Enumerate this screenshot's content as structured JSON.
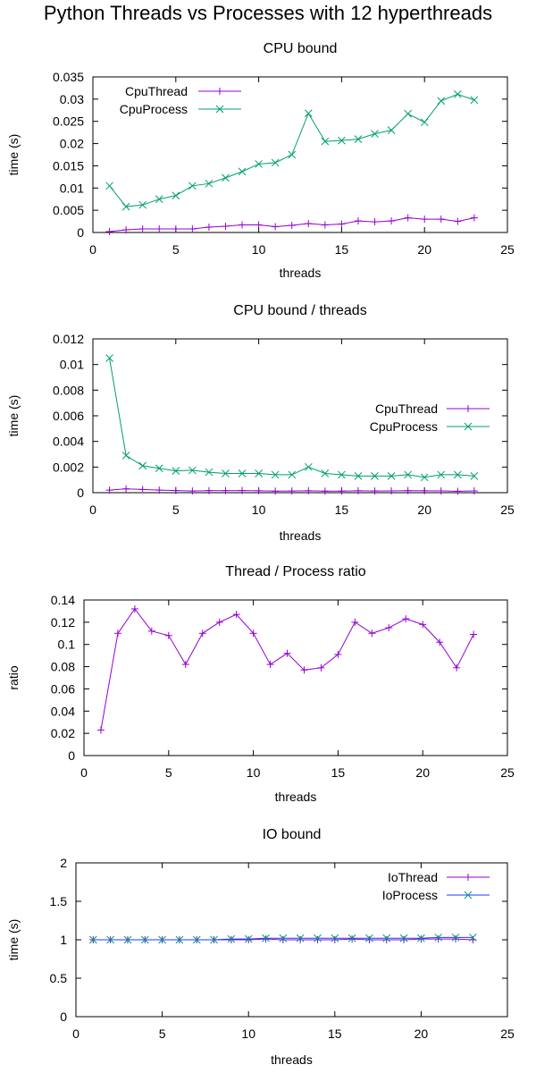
{
  "figure_title": "Python Threads vs Processes with 12 hyperthreads",
  "colors": {
    "thread": "#9400d3",
    "process": "#009e73",
    "io_process_line": "#1f3bff"
  },
  "chart_data": [
    {
      "id": "cpu-bound",
      "type": "line",
      "title": "CPU bound",
      "xlabel": "threads",
      "ylabel": "time (s)",
      "xlim": [
        0,
        25
      ],
      "ylim": [
        0,
        0.035
      ],
      "xticks": [
        0,
        5,
        10,
        15,
        20,
        25
      ],
      "yticks": [
        0,
        0.005,
        0.01,
        0.015,
        0.02,
        0.025,
        0.03,
        0.035
      ],
      "ytick_labels": [
        "0",
        "0.005",
        "0.01",
        "0.015",
        "0.02",
        "0.025",
        "0.03",
        "0.035"
      ],
      "legend": "top-left",
      "x": [
        1,
        2,
        3,
        4,
        5,
        6,
        7,
        8,
        9,
        10,
        11,
        12,
        13,
        14,
        15,
        16,
        17,
        18,
        19,
        20,
        21,
        22,
        23
      ],
      "series": [
        {
          "name": "CpuThread",
          "marker": "plus",
          "color": "#9400d3",
          "values": [
            0.0002,
            0.0006,
            0.0008,
            0.0008,
            0.0008,
            0.0008,
            0.0012,
            0.0014,
            0.0017,
            0.0017,
            0.0013,
            0.0016,
            0.002,
            0.0017,
            0.0019,
            0.0026,
            0.0024,
            0.0026,
            0.0033,
            0.003,
            0.003,
            0.0025,
            0.0033
          ]
        },
        {
          "name": "CpuProcess",
          "marker": "cross",
          "color": "#009e73",
          "values": [
            0.0105,
            0.0058,
            0.0062,
            0.0075,
            0.0083,
            0.0105,
            0.011,
            0.0123,
            0.0137,
            0.0154,
            0.0157,
            0.0175,
            0.0268,
            0.0205,
            0.0207,
            0.021,
            0.0222,
            0.023,
            0.0267,
            0.0248,
            0.0296,
            0.0311,
            0.0298
          ]
        }
      ]
    },
    {
      "id": "cpu-bound-per-thread",
      "type": "line",
      "title": "CPU bound / threads",
      "xlabel": "threads",
      "ylabel": "time (s)",
      "xlim": [
        0,
        25
      ],
      "ylim": [
        0,
        0.012
      ],
      "xticks": [
        0,
        5,
        10,
        15,
        20,
        25
      ],
      "yticks": [
        0,
        0.002,
        0.004,
        0.006,
        0.008,
        0.01,
        0.012
      ],
      "ytick_labels": [
        "0",
        "0.002",
        "0.004",
        "0.006",
        "0.008",
        "0.01",
        "0.012"
      ],
      "legend": "right",
      "x": [
        1,
        2,
        3,
        4,
        5,
        6,
        7,
        8,
        9,
        10,
        11,
        12,
        13,
        14,
        15,
        16,
        17,
        18,
        19,
        20,
        21,
        22,
        23
      ],
      "series": [
        {
          "name": "CpuThread",
          "marker": "plus",
          "color": "#9400d3",
          "values": [
            0.0002,
            0.0003,
            0.00025,
            0.0002,
            0.00017,
            0.00013,
            0.00016,
            0.00016,
            0.00017,
            0.00015,
            0.00012,
            0.00013,
            0.00015,
            0.00012,
            0.00012,
            0.00015,
            0.00013,
            0.00014,
            0.00016,
            0.00015,
            0.00014,
            0.00011,
            0.00014
          ]
        },
        {
          "name": "CpuProcess",
          "marker": "cross",
          "color": "#009e73",
          "values": [
            0.0105,
            0.0029,
            0.0021,
            0.0019,
            0.0017,
            0.00175,
            0.0016,
            0.0015,
            0.0015,
            0.0015,
            0.0014,
            0.0014,
            0.002,
            0.0015,
            0.0014,
            0.0013,
            0.0013,
            0.0013,
            0.0014,
            0.0012,
            0.0014,
            0.0014,
            0.0013
          ]
        }
      ]
    },
    {
      "id": "thread-process-ratio",
      "type": "line",
      "title": "Thread / Process ratio",
      "xlabel": "threads",
      "ylabel": "ratio",
      "xlim": [
        0,
        25
      ],
      "ylim": [
        0,
        0.14
      ],
      "xticks": [
        0,
        5,
        10,
        15,
        20,
        25
      ],
      "yticks": [
        0,
        0.02,
        0.04,
        0.06,
        0.08,
        0.1,
        0.12,
        0.14
      ],
      "ytick_labels": [
        "0",
        "0.02",
        "0.04",
        "0.06",
        "0.08",
        "0.1",
        "0.12",
        "0.14"
      ],
      "legend": "none",
      "x": [
        1,
        2,
        3,
        4,
        5,
        6,
        7,
        8,
        9,
        10,
        11,
        12,
        13,
        14,
        15,
        16,
        17,
        18,
        19,
        20,
        21,
        22,
        23
      ],
      "series": [
        {
          "name": "",
          "marker": "plus",
          "color": "#9400d3",
          "values": [
            0.023,
            0.11,
            0.132,
            0.112,
            0.108,
            0.082,
            0.11,
            0.12,
            0.127,
            0.11,
            0.082,
            0.092,
            0.077,
            0.079,
            0.091,
            0.12,
            0.11,
            0.115,
            0.123,
            0.118,
            0.102,
            0.079,
            0.109
          ]
        }
      ]
    },
    {
      "id": "io-bound",
      "type": "line",
      "title": "IO bound",
      "xlabel": "threads",
      "ylabel": "time (s)",
      "xlim": [
        0,
        25
      ],
      "ylim": [
        0,
        2
      ],
      "xticks": [
        0,
        5,
        10,
        15,
        20,
        25
      ],
      "yticks": [
        0,
        0.5,
        1,
        1.5,
        2
      ],
      "ytick_labels": [
        "0",
        "0.5",
        "1",
        "1.5",
        "2"
      ],
      "legend": "top-right",
      "x": [
        1,
        2,
        3,
        4,
        5,
        6,
        7,
        8,
        9,
        10,
        11,
        12,
        13,
        14,
        15,
        16,
        17,
        18,
        19,
        20,
        21,
        22,
        23
      ],
      "series": [
        {
          "name": "IoThread",
          "marker": "plus",
          "color": "#9400d3",
          "values": [
            1.0,
            1.0,
            1.0,
            1.0,
            1.0,
            1.0,
            1.0,
            1.0,
            1.0,
            1.0,
            1.01,
            1.0,
            1.0,
            1.0,
            1.0,
            1.01,
            1.0,
            1.0,
            1.0,
            1.01,
            1.01,
            1.01,
            1.0
          ]
        },
        {
          "name": "IoProcess",
          "marker": "cross",
          "color": "#009e73",
          "line_color": "#1f3bff",
          "values": [
            1.0,
            1.0,
            1.0,
            1.0,
            1.0,
            1.0,
            1.0,
            1.0,
            1.01,
            1.01,
            1.02,
            1.02,
            1.02,
            1.02,
            1.02,
            1.02,
            1.02,
            1.02,
            1.02,
            1.02,
            1.03,
            1.03,
            1.03
          ]
        }
      ]
    }
  ]
}
